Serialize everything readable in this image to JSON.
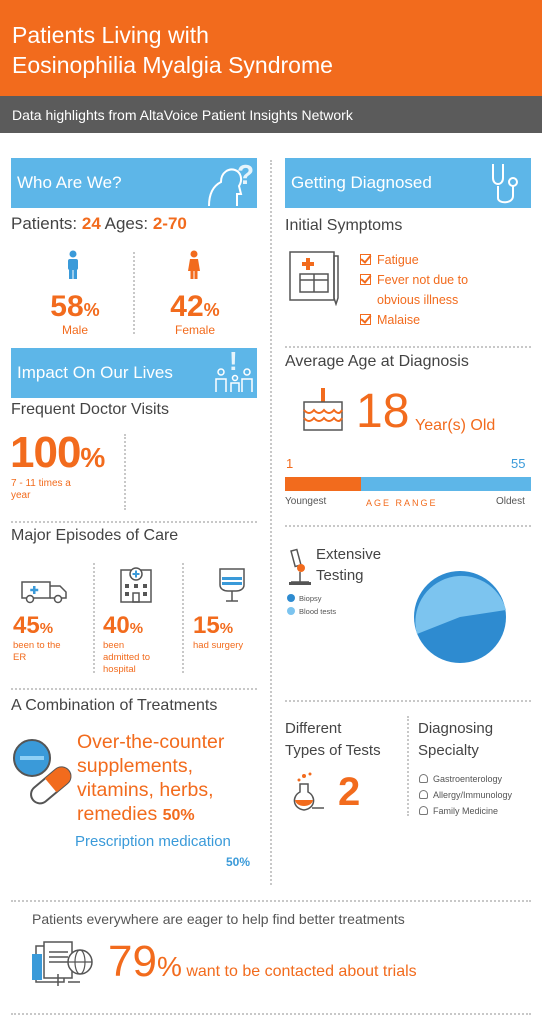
{
  "header": {
    "title_line1": "Patients Living with",
    "title_line2": "Eosinophilia Myalgia Syndrome",
    "subtitle": "Data highlights from AltaVoice Patient Insights Network"
  },
  "who": {
    "banner": "Who Are We?",
    "patients_label": "Patients:",
    "patients_value": "24",
    "ages_label": "Ages:",
    "ages_value": "2-70",
    "male_num": "58",
    "male_unit": "%",
    "male_label": "Male",
    "female_num": "42",
    "female_unit": "%",
    "female_label": "Female"
  },
  "impact": {
    "banner": "Impact On Our Lives",
    "visits_title": "Frequent Doctor Visits",
    "visits_num": "100",
    "visits_unit": "%",
    "visits_desc_line1": "7 - 11 times a",
    "visits_desc_line2": "year",
    "episodes_title": "Major Episodes of Care",
    "er_num": "45",
    "er_unit": "%",
    "er_line1": "been to the",
    "er_line2": "ER",
    "hosp_num": "40",
    "hosp_unit": "%",
    "hosp_line1": "been",
    "hosp_line2": "admitted to",
    "hosp_line3": "hospital",
    "surg_num": "15",
    "surg_unit": "%",
    "surg_line1": "had surgery",
    "treat_title": "A Combination of Treatments",
    "otc_line1": "Over-the-counter",
    "otc_line2": "supplements,",
    "otc_line3": "vitamins, herbs,",
    "otc_line4": "remedies",
    "otc_pct": "50%",
    "rx_label": "Prescription medication",
    "rx_pct": "50%"
  },
  "diag": {
    "banner": "Getting Diagnosed",
    "symptoms_title": "Initial Symptoms",
    "symptoms": [
      "Fatigue",
      "Fever not due to",
      "obvious illness",
      "Malaise"
    ],
    "avg_age_title": "Average Age at Diagnosis",
    "avg_age_value": "18",
    "avg_age_unit": "Year(s) Old",
    "range_min": "1",
    "range_max": "55",
    "range_left_label": "Youngest",
    "range_center_label": "AGE RANGE",
    "range_right_label": "Oldest",
    "range_fill_fraction": 0.31,
    "testing_title_line1": "Extensive",
    "testing_title_line2": "Testing",
    "legend": [
      "Biopsy",
      "Blood tests"
    ],
    "types_title_line1": "Different",
    "types_title_line2": "Types of Tests",
    "types_value": "2",
    "specialty_title_line1": "Diagnosing",
    "specialty_title_line2": "Specialty",
    "specialties": [
      "Gastroenterology",
      "Allergy/Immunology",
      "Family Medicine"
    ]
  },
  "footer": {
    "intro": "Patients everywhere are eager to help find better treatments",
    "pct_num": "79",
    "pct_unit": "%",
    "pct_label": "want to be contacted about trials"
  },
  "colors": {
    "orange": "#f26b1d",
    "blue": "#5db6e8",
    "dark_blue": "#2e8bd0",
    "gray_bar": "#555555"
  },
  "icons": [
    "person-icon",
    "head-question-icon",
    "family-icon",
    "stethoscope-icon",
    "clipboard-icon",
    "cake-icon",
    "ambulance-icon",
    "hospital-icon",
    "iv-bag-icon",
    "pill-icon",
    "microscope-icon",
    "flask-icon",
    "document-globe-icon"
  ]
}
